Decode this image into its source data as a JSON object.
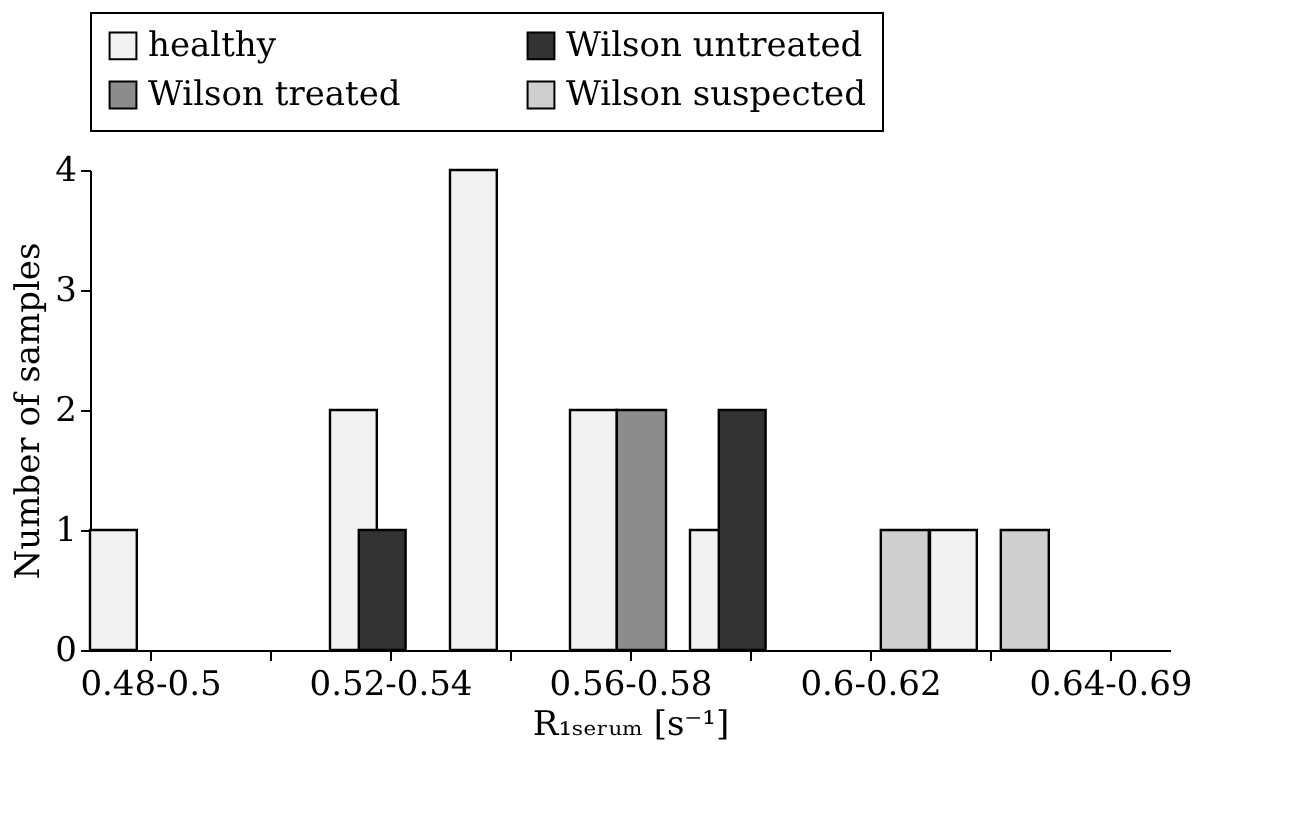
{
  "chart_data": {
    "type": "bar",
    "categories": [
      "0.48-0.5",
      null,
      "0.52-0.54",
      null,
      "0.56-0.58",
      null,
      "0.6-0.62",
      null,
      "0.64-0.69"
    ],
    "xlabel": "R₁ₛₑᵣᵤₘ [s⁻¹]",
    "ylabel": "Number of samples",
    "series": [
      {
        "name": "healthy",
        "color": "#f2f2f2",
        "values": [
          1,
          null,
          2,
          4,
          2,
          1,
          null,
          1,
          null
        ]
      },
      {
        "name": "Wilson untreated",
        "color": "#333333",
        "values": [
          null,
          null,
          1,
          null,
          null,
          2,
          null,
          null,
          null
        ]
      },
      {
        "name": "Wilson treated",
        "color": "#8c8c8c",
        "values": [
          null,
          null,
          null,
          null,
          2,
          null,
          null,
          null,
          null
        ]
      },
      {
        "name": "Wilson suspected",
        "color": "#cfcfcf",
        "values": [
          null,
          null,
          null,
          null,
          null,
          null,
          1,
          1,
          null
        ]
      }
    ],
    "ylim": [
      0,
      4
    ],
    "yticks": [
      0,
      1,
      2,
      3,
      4
    ],
    "grid": false,
    "legend": "top"
  }
}
